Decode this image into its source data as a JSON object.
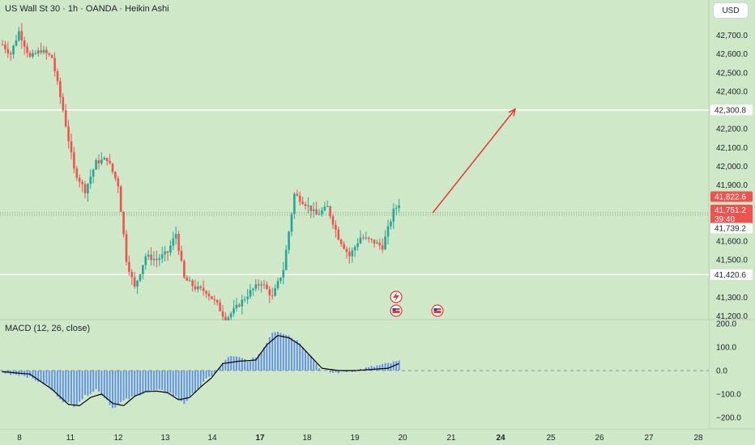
{
  "header": {
    "title": "US Wall St 30 · 1h · OANDA · Heikin Ashi",
    "currency_button": "USD"
  },
  "price_axis": {
    "ticks": [
      "42,700.0",
      "42,600.0",
      "42,500.0",
      "42,400.0",
      "42,200.0",
      "42,100.0",
      "42,000.0",
      "41,900.0",
      "41,600.0",
      "41,500.0",
      "41,300.0",
      "41,200.0"
    ]
  },
  "price_badges": {
    "resistance": "42,300.8",
    "high": "41,822.6",
    "last": "41,751.2",
    "countdown": "39:40",
    "mid": "41,739.2",
    "support": "41,420.6"
  },
  "macd": {
    "title": "MACD (12, 26, close)",
    "ticks": [
      "200.0",
      "100.0",
      "0.0",
      "−100.0",
      "−200.0"
    ]
  },
  "time_axis": {
    "labels": [
      "8",
      "11",
      "12",
      "13",
      "14",
      "17",
      "18",
      "19",
      "20",
      "21",
      "24",
      "25",
      "26",
      "27",
      "28"
    ]
  },
  "colors": {
    "background": "#cfe8c7",
    "up": "#26a69a",
    "down": "#ef5350",
    "arrow": "#e53935",
    "histogram": "#5b8def",
    "signal": "#000000"
  },
  "chart_data": {
    "type": "candlestick",
    "chart_style": "Heikin Ashi",
    "symbol": "US Wall St 30",
    "interval": "1h",
    "source": "OANDA",
    "y_range": [
      41130,
      42800
    ],
    "horizontal_levels": [
      42300.8,
      41751.2,
      41739.2,
      41420.6
    ],
    "x_labels": [
      "8",
      "11",
      "12",
      "13",
      "14",
      "17",
      "18",
      "19",
      "20",
      "21",
      "24",
      "25",
      "26",
      "27",
      "28"
    ],
    "price_path": [
      [
        0,
        42650
      ],
      [
        3,
        42600
      ],
      [
        6,
        42720
      ],
      [
        10,
        42580
      ],
      [
        14,
        42620
      ],
      [
        18,
        42580
      ],
      [
        22,
        42300
      ],
      [
        26,
        41980
      ],
      [
        30,
        41870
      ],
      [
        34,
        42020
      ],
      [
        38,
        42040
      ],
      [
        42,
        41900
      ],
      [
        45,
        41500
      ],
      [
        48,
        41350
      ],
      [
        52,
        41520
      ],
      [
        56,
        41500
      ],
      [
        60,
        41540
      ],
      [
        63,
        41640
      ],
      [
        66,
        41400
      ],
      [
        70,
        41350
      ],
      [
        74,
        41330
      ],
      [
        78,
        41260
      ],
      [
        81,
        41180
      ],
      [
        90,
        41330
      ],
      [
        94,
        41380
      ],
      [
        98,
        41300
      ],
      [
        102,
        41450
      ],
      [
        106,
        41850
      ],
      [
        110,
        41800
      ],
      [
        114,
        41740
      ],
      [
        118,
        41780
      ],
      [
        122,
        41620
      ],
      [
        126,
        41520
      ],
      [
        130,
        41620
      ],
      [
        134,
        41600
      ],
      [
        138,
        41570
      ],
      [
        142,
        41760
      ],
      [
        144,
        41800
      ]
    ],
    "macd_range": [
      -240,
      200
    ],
    "macd_histogram_path": [
      [
        0,
        -10
      ],
      [
        8,
        -20
      ],
      [
        16,
        -60
      ],
      [
        22,
        -130
      ],
      [
        26,
        -150
      ],
      [
        30,
        -110
      ],
      [
        34,
        -80
      ],
      [
        38,
        -125
      ],
      [
        40,
        -160
      ],
      [
        44,
        -130
      ],
      [
        48,
        -110
      ],
      [
        52,
        -90
      ],
      [
        56,
        -85
      ],
      [
        60,
        -90
      ],
      [
        64,
        -120
      ],
      [
        66,
        -140
      ],
      [
        70,
        -90
      ],
      [
        74,
        -40
      ],
      [
        78,
        0
      ],
      [
        82,
        60
      ],
      [
        86,
        55
      ],
      [
        90,
        40
      ],
      [
        94,
        80
      ],
      [
        98,
        165
      ],
      [
        100,
        170
      ],
      [
        104,
        150
      ],
      [
        108,
        120
      ],
      [
        112,
        60
      ],
      [
        116,
        0
      ],
      [
        120,
        -10
      ],
      [
        124,
        -5
      ],
      [
        128,
        0
      ],
      [
        132,
        10
      ],
      [
        136,
        20
      ],
      [
        140,
        30
      ],
      [
        144,
        40
      ]
    ],
    "macd_signal_path": [
      [
        0,
        -5
      ],
      [
        10,
        -15
      ],
      [
        18,
        -80
      ],
      [
        24,
        -145
      ],
      [
        28,
        -150
      ],
      [
        32,
        -115
      ],
      [
        36,
        -100
      ],
      [
        40,
        -140
      ],
      [
        44,
        -150
      ],
      [
        48,
        -110
      ],
      [
        52,
        -90
      ],
      [
        56,
        -88
      ],
      [
        60,
        -95
      ],
      [
        64,
        -125
      ],
      [
        68,
        -115
      ],
      [
        72,
        -70
      ],
      [
        76,
        -30
      ],
      [
        80,
        30
      ],
      [
        86,
        40
      ],
      [
        92,
        45
      ],
      [
        96,
        110
      ],
      [
        100,
        150
      ],
      [
        104,
        140
      ],
      [
        108,
        110
      ],
      [
        112,
        60
      ],
      [
        116,
        10
      ],
      [
        122,
        0
      ],
      [
        128,
        0
      ],
      [
        134,
        5
      ],
      [
        140,
        10
      ],
      [
        144,
        30
      ]
    ]
  }
}
